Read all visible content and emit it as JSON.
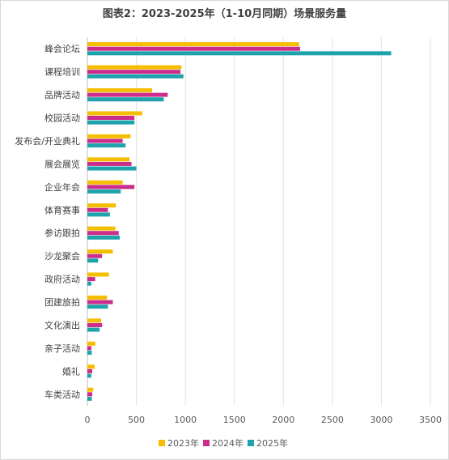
{
  "chart_data": {
    "type": "bar",
    "orientation": "horizontal",
    "title": "图表2：2023-2025年（1-10月同期）场景服务量",
    "xlabel": "",
    "ylabel": "",
    "xlim": [
      0,
      3500
    ],
    "xticks": [
      0,
      500,
      1000,
      1500,
      2000,
      2500,
      3000,
      3500
    ],
    "grid": "vertical",
    "legend_position": "bottom",
    "categories": [
      "峰会论坛",
      "课程培训",
      "品牌活动",
      "校园活动",
      "发布会/开业典礼",
      "展会展览",
      "企业年会",
      "体育赛事",
      "参访跟拍",
      "沙龙聚会",
      "政府活动",
      "团建旅拍",
      "文化演出",
      "亲子活动",
      "婚礼",
      "车类活动"
    ],
    "series": [
      {
        "name": "2023年",
        "color": "#f5be00",
        "values": [
          2160,
          960,
          660,
          560,
          440,
          430,
          360,
          290,
          285,
          260,
          220,
          200,
          140,
          80,
          75,
          60
        ]
      },
      {
        "name": "2024年",
        "color": "#cc2c8c",
        "values": [
          2170,
          950,
          820,
          480,
          360,
          450,
          480,
          210,
          320,
          150,
          80,
          260,
          150,
          40,
          50,
          50
        ]
      },
      {
        "name": "2025年",
        "color": "#1ea3ac",
        "values": [
          3100,
          980,
          780,
          480,
          390,
          500,
          340,
          230,
          330,
          110,
          40,
          210,
          125,
          45,
          40,
          45
        ]
      }
    ]
  }
}
